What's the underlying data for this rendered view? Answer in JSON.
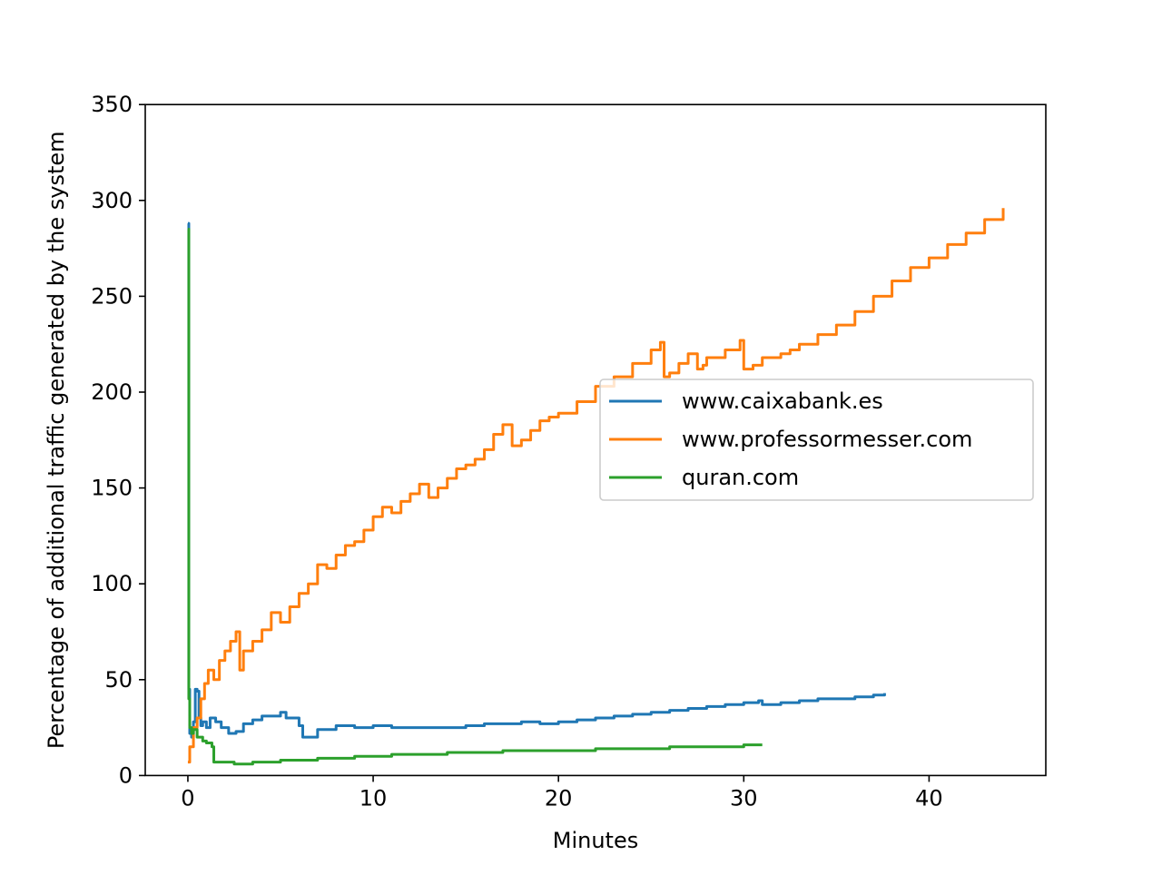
{
  "chart_data": {
    "type": "line",
    "title": "",
    "xlabel": "Minutes",
    "ylabel": "Percentage of additional traffic generated by the system",
    "xlim": [
      -2.3,
      46.3
    ],
    "ylim": [
      0,
      350
    ],
    "xticks": [
      0,
      10,
      20,
      30,
      40
    ],
    "yticks": [
      0,
      50,
      100,
      150,
      200,
      250,
      300,
      350
    ],
    "grid": false,
    "legend_position": "center-right",
    "series": [
      {
        "name": "www.caixabank.es",
        "color": "#1f77b4",
        "x": [
          0,
          0.05,
          0.1,
          0.2,
          0.3,
          0.4,
          0.5,
          0.6,
          0.7,
          0.8,
          1.0,
          1.2,
          1.5,
          1.8,
          2.2,
          2.6,
          3.0,
          3.5,
          4.0,
          4.5,
          5.0,
          5.3,
          5.8,
          6.0,
          6.2,
          7.0,
          8.0,
          9.0,
          10.0,
          11.0,
          12.0,
          13.0,
          14.0,
          15.0,
          16.0,
          17.0,
          18.0,
          19.0,
          20.0,
          21.0,
          22.0,
          23.0,
          24.0,
          25.0,
          26.0,
          27.0,
          28.0,
          29.0,
          30.0,
          30.8,
          31.0,
          32.0,
          33.0,
          34.0,
          35.0,
          36.0,
          37.0,
          37.6
        ],
        "y": [
          288,
          45,
          22,
          20,
          28,
          45,
          44,
          30,
          26,
          28,
          25,
          30,
          28,
          25,
          22,
          23,
          27,
          29,
          31,
          31,
          33,
          30,
          30,
          26,
          20,
          24,
          26,
          25,
          26,
          25,
          25,
          25,
          25,
          26,
          27,
          27,
          28,
          27,
          28,
          29,
          30,
          31,
          32,
          33,
          34,
          35,
          36,
          37,
          38,
          39,
          37,
          38,
          39,
          40,
          40,
          41,
          42,
          43
        ]
      },
      {
        "name": "www.professormesser.com",
        "color": "#ff7f0e",
        "x": [
          0,
          0.1,
          0.3,
          0.5,
          0.7,
          0.9,
          1.1,
          1.4,
          1.7,
          2.0,
          2.3,
          2.6,
          2.8,
          3.0,
          3.5,
          4.0,
          4.5,
          5.0,
          5.5,
          6.0,
          6.5,
          7.0,
          7.5,
          8.0,
          8.5,
          9.0,
          9.5,
          10.0,
          10.5,
          11.0,
          11.5,
          12.0,
          12.5,
          13.0,
          13.5,
          14.0,
          14.5,
          15.0,
          15.5,
          16.0,
          16.5,
          17.0,
          17.5,
          18.0,
          18.5,
          19.0,
          19.5,
          20.0,
          21.0,
          22.0,
          23.0,
          24.0,
          25.0,
          25.5,
          25.7,
          26.0,
          26.5,
          27.0,
          27.5,
          27.8,
          28.0,
          29.0,
          29.8,
          30.0,
          30.5,
          31.0,
          32.0,
          32.5,
          33.0,
          34.0,
          35.0,
          36.0,
          37.0,
          38.0,
          39.0,
          40.0,
          41.0,
          42.0,
          43.0,
          44.0
        ],
        "y": [
          7,
          15,
          25,
          30,
          40,
          48,
          55,
          50,
          60,
          65,
          70,
          75,
          55,
          65,
          70,
          76,
          85,
          80,
          88,
          95,
          100,
          110,
          108,
          115,
          120,
          122,
          128,
          135,
          140,
          137,
          143,
          147,
          152,
          145,
          150,
          155,
          160,
          162,
          165,
          170,
          178,
          183,
          172,
          175,
          180,
          185,
          187,
          189,
          195,
          203,
          208,
          215,
          222,
          226,
          208,
          210,
          215,
          220,
          212,
          214,
          218,
          222,
          227,
          212,
          214,
          218,
          220,
          222,
          225,
          230,
          235,
          242,
          250,
          258,
          265,
          270,
          277,
          283,
          290,
          296
        ]
      },
      {
        "name": "quran.com",
        "color": "#2ca02c",
        "x": [
          0,
          0.05,
          0.1,
          0.2,
          0.3,
          0.5,
          0.8,
          1.0,
          1.3,
          1.4,
          1.6,
          2.0,
          2.5,
          3.0,
          3.5,
          4.0,
          5.0,
          6.0,
          7.0,
          8.0,
          9.0,
          10.0,
          11.0,
          12.0,
          13.0,
          14.0,
          15.0,
          16.0,
          17.0,
          18.0,
          19.0,
          20.0,
          21.0,
          22.0,
          23.0,
          24.0,
          25.0,
          26.0,
          27.0,
          28.0,
          29.0,
          30.0,
          31.0
        ],
        "y": [
          285,
          40,
          25,
          22,
          24,
          20,
          18,
          17,
          15,
          7,
          7,
          7,
          6,
          6,
          7,
          7,
          8,
          8,
          9,
          9,
          10,
          10,
          11,
          11,
          11,
          12,
          12,
          12,
          13,
          13,
          13,
          13,
          13,
          14,
          14,
          14,
          14,
          15,
          15,
          15,
          15,
          16,
          16
        ]
      }
    ]
  }
}
